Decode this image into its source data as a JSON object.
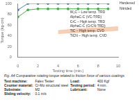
{
  "chart_data": {
    "type": "line",
    "x_label": "Testing time (min.)",
    "y_label": "Torque (kg-cm)",
    "xlim": [
      0,
      10
    ],
    "xticks": [
      0,
      2,
      4,
      6,
      8,
      10
    ],
    "ylim": [
      0,
      100
    ],
    "yticks": [
      0,
      20,
      40,
      60,
      80,
      100
    ],
    "grid": false,
    "series": [
      {
        "name": "Hardened",
        "color": "#4a7ebb",
        "marker": "circle",
        "x": [
          0,
          1,
          2,
          3,
          4,
          5,
          6,
          7,
          8,
          9
        ],
        "values": [
          88,
          100,
          100,
          100,
          100,
          100,
          100,
          100,
          100,
          100
        ]
      },
      {
        "name": "Nitrided",
        "color": "#3cb043",
        "marker": "circle",
        "x": [
          0,
          1,
          2,
          3,
          4,
          5,
          6,
          7,
          8,
          9
        ],
        "values": [
          75,
          88,
          90,
          90,
          90,
          90,
          90,
          90,
          90,
          90
        ]
      }
    ],
    "band": {
      "color": "#f4b183",
      "x": [
        4,
        6,
        8,
        10
      ],
      "lower": [
        44,
        46,
        48,
        50
      ],
      "upper": [
        50,
        53,
        55,
        57
      ]
    },
    "annotations": [
      "W₂C – Low temp. TRD",
      "AlphaC-C (VC-TRD)",
      "CrC – High temp. TRD",
      "AlphaC-C (CrCN-TRD)",
      "TiC – High temp. CVD",
      "TiCN – High temp. CVD"
    ]
  },
  "caption": "Fig. A4   Comparative rotating torque related to friction force of various coatings",
  "test_conditions": [
    {
      "label": "Test machine:",
      "value": "Falex Tester"
    },
    {
      "label": "Load:",
      "value": "400 Kgf"
    },
    {
      "label": "Counter material:",
      "value": "Cr-Mo structural steel"
    },
    {
      "label": "Testing period:",
      "value": "4 min."
    },
    {
      "label": "Substrate:",
      "value": "M2"
    },
    {
      "label": "Lubricant:",
      "value": "None"
    },
    {
      "label": "Sliding velocity:",
      "value": "0.1 m/s"
    }
  ]
}
